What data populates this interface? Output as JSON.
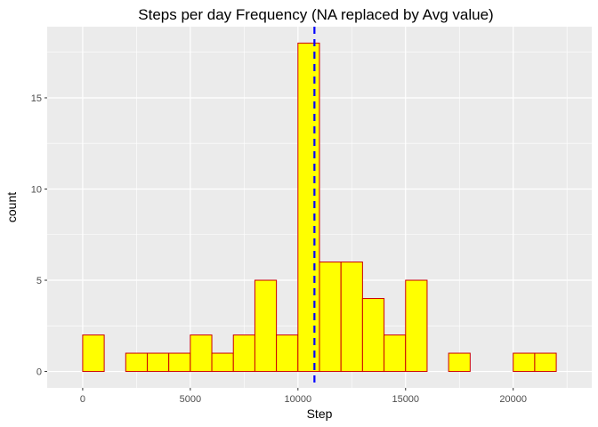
{
  "chart_data": {
    "type": "bar",
    "title": "Steps per day Frequency (NA replaced by Avg value)",
    "xlabel": "Step",
    "ylabel": "count",
    "bin_width": 1000,
    "bins": [
      {
        "x": -500,
        "count": 0
      },
      {
        "x": 500,
        "count": 2
      },
      {
        "x": 1500,
        "count": 0
      },
      {
        "x": 2500,
        "count": 1
      },
      {
        "x": 3500,
        "count": 1
      },
      {
        "x": 4500,
        "count": 1
      },
      {
        "x": 5500,
        "count": 2
      },
      {
        "x": 6500,
        "count": 1
      },
      {
        "x": 7500,
        "count": 2
      },
      {
        "x": 8500,
        "count": 5
      },
      {
        "x": 9500,
        "count": 2
      },
      {
        "x": 10500,
        "count": 18
      },
      {
        "x": 11500,
        "count": 6
      },
      {
        "x": 12500,
        "count": 6
      },
      {
        "x": 13500,
        "count": 4
      },
      {
        "x": 14500,
        "count": 2
      },
      {
        "x": 15500,
        "count": 5
      },
      {
        "x": 16500,
        "count": 0
      },
      {
        "x": 17500,
        "count": 1
      },
      {
        "x": 18500,
        "count": 0
      },
      {
        "x": 19500,
        "count": 0
      },
      {
        "x": 20500,
        "count": 1
      },
      {
        "x": 21500,
        "count": 1
      },
      {
        "x": 22500,
        "count": 0
      }
    ],
    "xlim": [
      -1650,
      23650
    ],
    "ylim": [
      -0.9,
      18.9
    ],
    "x_ticks": [
      0,
      5000,
      10000,
      15000,
      20000
    ],
    "x_tick_labels": [
      "0",
      "5000",
      "10000",
      "15000",
      "20000"
    ],
    "y_ticks": [
      0,
      5,
      10,
      15
    ],
    "y_tick_labels": [
      "0",
      "5",
      "10",
      "15"
    ],
    "mean_line": 10766.19,
    "grid": true,
    "colors": {
      "panel": "#ebebeb",
      "grid_major": "#ffffff",
      "bar_fill": "#ffff00",
      "bar_stroke": "#cc0000",
      "mean_line": "#0000ff"
    }
  }
}
